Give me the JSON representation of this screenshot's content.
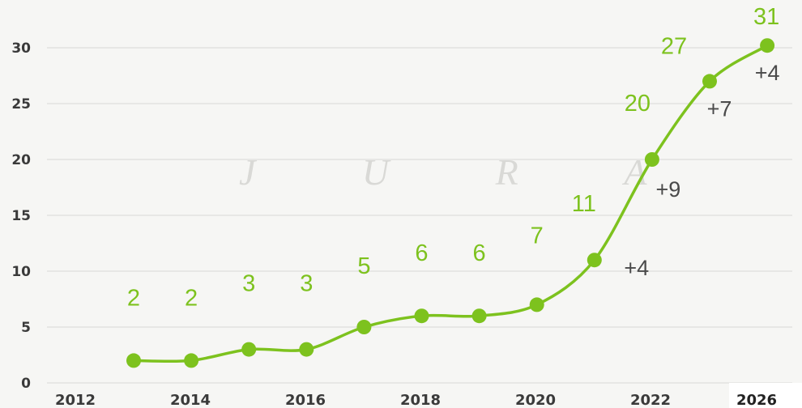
{
  "background_watermark": "J U R A",
  "chart_data": {
    "type": "line",
    "title": "",
    "xlabel": "",
    "ylabel": "",
    "x_tick_labels": [
      "2012",
      "2014",
      "2016",
      "2018",
      "2020",
      "2022",
      "2026"
    ],
    "y_tick_labels": [
      "0",
      "5",
      "10",
      "15",
      "20",
      "25",
      "30"
    ],
    "ylim": [
      0,
      30
    ],
    "grid": "horizontal",
    "line_color": "#7dc21e",
    "value_label_color": "#7dc21e",
    "delta_label_color": "#4a4a4a",
    "series": [
      {
        "x": [
          2013,
          2014,
          2015,
          2016,
          2017,
          2018,
          2019,
          2020,
          2021,
          2022,
          2023,
          2024
        ],
        "values": [
          2,
          2,
          3,
          3,
          5,
          6,
          6,
          7,
          11,
          20,
          27,
          31
        ],
        "plotted_y": [
          2,
          2,
          3,
          3,
          5,
          6,
          6,
          7,
          11,
          20,
          27,
          30.2
        ],
        "value_labels": [
          "2",
          "2",
          "3",
          "3",
          "5",
          "6",
          "6",
          "7",
          "11",
          "20",
          "27",
          "31"
        ],
        "delta_labels": [
          "",
          "",
          "",
          "",
          "",
          "",
          "",
          "",
          "+4",
          "+9",
          "+7",
          "+4"
        ]
      }
    ]
  }
}
